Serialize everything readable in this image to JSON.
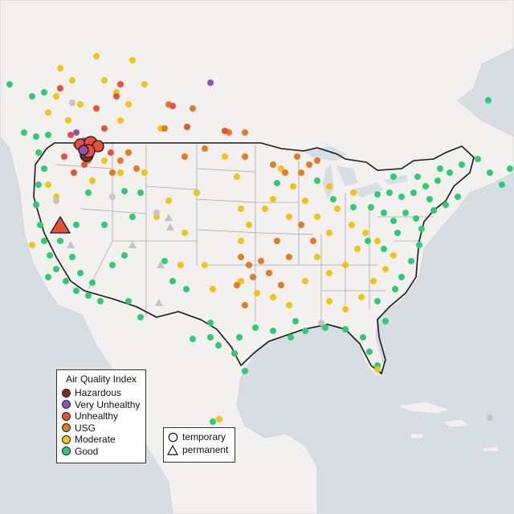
{
  "legend": {
    "title": "Air Quality Index",
    "categories": [
      {
        "label": "Hazardous",
        "color": "#7e2a24"
      },
      {
        "label": "Very Unhealthy",
        "color": "#8f52b3"
      },
      {
        "label": "Unhealthy",
        "color": "#e8503a"
      },
      {
        "label": "USG",
        "color": "#e57a1f"
      },
      {
        "label": "Moderate",
        "color": "#f2c40f"
      },
      {
        "label": "Good",
        "color": "#2ecc71"
      }
    ],
    "types": [
      {
        "label": "temporary",
        "shape": "circle-icon"
      },
      {
        "label": "permanent",
        "shape": "triangle-icon"
      }
    ]
  },
  "colors": {
    "water": "#d6dee4",
    "land": "#f2f1ef",
    "boundary": "#1a1a1a",
    "state_lines": "#a9a9a9",
    "no_data": "#c4c4c4"
  }
}
